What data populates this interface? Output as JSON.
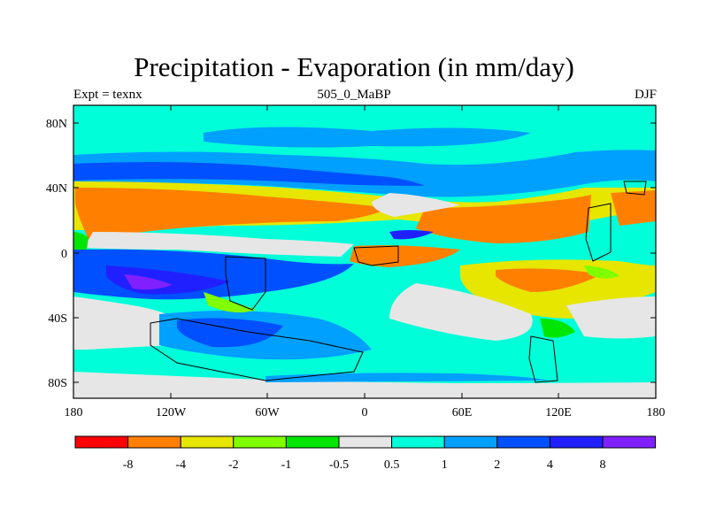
{
  "header": {
    "title": "Precipitation - Evaporation (in mm/day)",
    "left_label": "Expt = texnx",
    "center_label": "505_0_MaBP",
    "right_label": "DJF"
  },
  "axes": {
    "lat_ticks": [
      "80N",
      "40N",
      "0",
      "40S",
      "80S"
    ],
    "lon_ticks": [
      "180",
      "120W",
      "60W",
      "0",
      "60E",
      "120E",
      "180"
    ]
  },
  "legend": {
    "colors": [
      "#ff0000",
      "#ff8000",
      "#e6e600",
      "#80ff00",
      "#00e600",
      "#e6e6e6",
      "#00ffd9",
      "#00a0ff",
      "#0050ff",
      "#2020ff",
      "#8020ff"
    ],
    "labels": [
      "-8",
      "-4",
      "-2",
      "-1",
      "-0.5",
      "0.5",
      "1",
      "2",
      "4",
      "8"
    ]
  },
  "palette": {
    "background": "#00ffd9",
    "grey": "#e6e6e6",
    "light_blue": "#00a0ff",
    "blue": "#0050ff",
    "dark_blue": "#2020ff",
    "violet": "#8020ff",
    "orange": "#ff8000",
    "yellow": "#e6e600",
    "light_green": "#80ff00",
    "green": "#00e600",
    "red": "#ff0000"
  }
}
